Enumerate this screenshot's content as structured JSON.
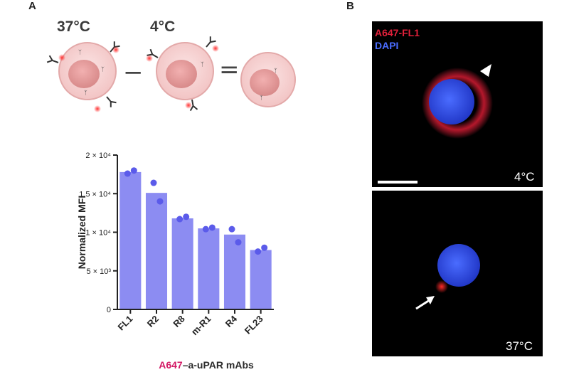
{
  "panel_a": {
    "letter": "A",
    "temp_left": "37°C",
    "temp_mid": "4°C",
    "minus": "−",
    "equals": "="
  },
  "panel_b": {
    "letter": "B",
    "legend_red": "A647-FL1",
    "legend_blue": "DAPI",
    "top_temp": "4°C",
    "bottom_temp": "37°C"
  },
  "colors": {
    "bar": "#8c8cf2",
    "dot": "#5b5bea",
    "red": "#e0203a",
    "blue": "#3a5ce8",
    "magenta": "#d31864"
  },
  "chart_data": {
    "type": "bar",
    "categories": [
      "FL1",
      "R2",
      "R8",
      "m-R1",
      "R4",
      "FL23"
    ],
    "values": [
      17800,
      15100,
      11800,
      10500,
      9700,
      7700
    ],
    "points": [
      [
        17600,
        18000
      ],
      [
        16400,
        14000
      ],
      [
        11700,
        12000
      ],
      [
        10400,
        10600
      ],
      [
        10400,
        8700
      ],
      [
        7500,
        8000
      ]
    ],
    "ylabel": "Normalized MFI",
    "xlabel_prefix": "A647",
    "xlabel_rest": "–a-uPAR mAbs",
    "ylim": [
      0,
      20000
    ],
    "yticks": [
      {
        "value": 0,
        "label": "0"
      },
      {
        "value": 5000,
        "label": "5 × 10³"
      },
      {
        "value": 10000,
        "label": "1 × 10⁴"
      },
      {
        "value": 15000,
        "label": "1.5 × 10⁴"
      },
      {
        "value": 20000,
        "label": "2 × 10⁴"
      }
    ]
  }
}
